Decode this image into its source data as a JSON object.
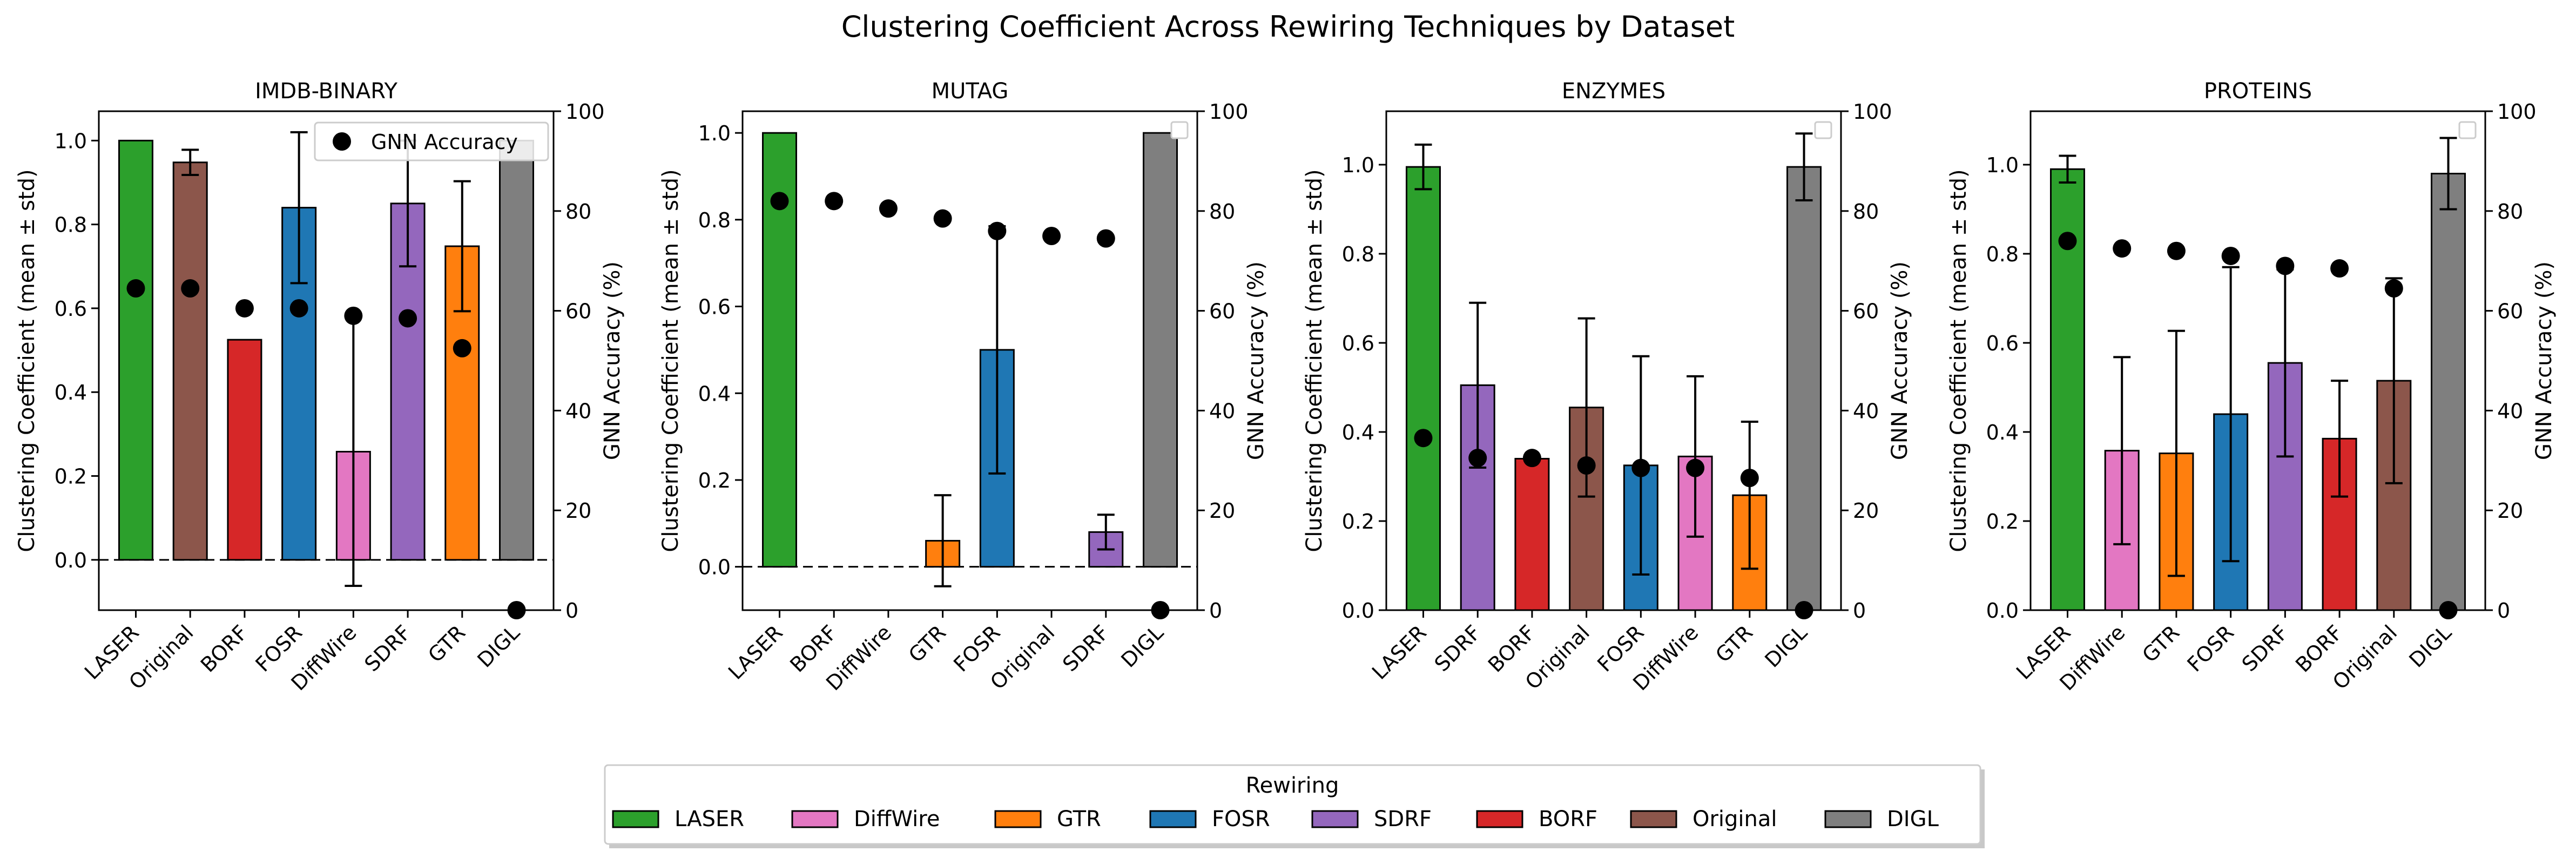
{
  "figure": {
    "title": "Clustering Coefficient Across Rewiring Techniques by Dataset",
    "legend_title": "Rewiring",
    "legend_items": [
      "LASER",
      "DiffWire",
      "GTR",
      "FOSR",
      "SDRF",
      "BORF",
      "Original",
      "DIGL"
    ],
    "colors": {
      "LASER": "#2ca02c",
      "DiffWire": "#e377c2",
      "GTR": "#ff7f0e",
      "FOSR": "#1f77b4",
      "SDRF": "#9467bd",
      "BORF": "#d62728",
      "Original": "#8c564b",
      "DIGL": "#7f7f7f"
    },
    "marker_color": "#000000"
  },
  "chart_data": [
    {
      "type": "bar",
      "title": "IMDB-BINARY",
      "ylabel": "Clustering Coefficient (mean ± std)",
      "y2label": "GNN Accuracy (%)",
      "ylim": [
        -0.12,
        1.07
      ],
      "yticks": [
        "0.0",
        "0.2",
        "0.4",
        "0.6",
        "0.8",
        "1.0"
      ],
      "y2lim": [
        0,
        100
      ],
      "y2ticks": [
        "0",
        "20",
        "40",
        "60",
        "80",
        "100"
      ],
      "zero_line": true,
      "legend": "GNN Accuracy",
      "legend_position": "top-right",
      "categories": [
        "LASER",
        "Original",
        "BORF",
        "FOSR",
        "DiffWire",
        "SDRF",
        "GTR",
        "DIGL"
      ],
      "values": [
        1.0,
        0.948,
        0.525,
        0.84,
        0.258,
        0.85,
        0.748,
        1.0
      ],
      "errors": [
        0.0,
        0.03,
        0.0,
        0.18,
        0.32,
        0.15,
        0.155,
        0.0
      ],
      "accuracy": [
        64.5,
        64.5,
        60.5,
        60.5,
        59,
        58.5,
        52.5,
        0
      ]
    },
    {
      "type": "bar",
      "title": "MUTAG",
      "ylabel": "Clustering Coefficient (mean ± std)",
      "y2label": "GNN Accuracy (%)",
      "ylim": [
        -0.1,
        1.05
      ],
      "yticks": [
        "0.0",
        "0.2",
        "0.4",
        "0.6",
        "0.8",
        "1.0"
      ],
      "y2lim": [
        0,
        100
      ],
      "y2ticks": [
        "0",
        "20",
        "40",
        "60",
        "80",
        "100"
      ],
      "zero_line": true,
      "legend": "",
      "legend_position": "top-right",
      "categories": [
        "LASER",
        "BORF",
        "DiffWire",
        "GTR",
        "FOSR",
        "Original",
        "SDRF",
        "DIGL"
      ],
      "values": [
        1.0,
        0.0,
        0.0,
        0.06,
        0.5,
        0.0,
        0.08,
        1.0
      ],
      "errors": [
        0.0,
        0.0,
        0.0,
        0.105,
        0.285,
        0.0,
        0.04,
        0.0
      ],
      "accuracy": [
        82,
        82,
        80.5,
        78.5,
        76,
        75,
        74.5,
        0
      ]
    },
    {
      "type": "bar",
      "title": "ENZYMES",
      "ylabel": "Clustering Coefficient (mean ± std)",
      "y2label": "GNN Accuracy (%)",
      "ylim": [
        0,
        1.12
      ],
      "yticks": [
        "0.0",
        "0.2",
        "0.4",
        "0.6",
        "0.8",
        "1.0"
      ],
      "y2lim": [
        0,
        100
      ],
      "y2ticks": [
        "0",
        "20",
        "40",
        "60",
        "80",
        "100"
      ],
      "zero_line": false,
      "legend": "",
      "legend_position": "top-right",
      "categories": [
        "LASER",
        "SDRF",
        "BORF",
        "Original",
        "FOSR",
        "DiffWire",
        "GTR",
        "DIGL"
      ],
      "values": [
        0.995,
        0.505,
        0.34,
        0.455,
        0.325,
        0.345,
        0.258,
        0.995
      ],
      "errors": [
        0.05,
        0.185,
        0.0,
        0.2,
        0.245,
        0.18,
        0.165,
        0.075
      ],
      "accuracy": [
        34.5,
        30.5,
        30.5,
        29,
        28.5,
        28.5,
        26.5,
        0
      ]
    },
    {
      "type": "bar",
      "title": "PROTEINS",
      "ylabel": "Clustering Coefficient (mean ± std)",
      "y2label": "GNN Accuracy (%)",
      "ylim": [
        0,
        1.12
      ],
      "yticks": [
        "0.0",
        "0.2",
        "0.4",
        "0.6",
        "0.8",
        "1.0"
      ],
      "y2lim": [
        0,
        100
      ],
      "y2ticks": [
        "0",
        "20",
        "40",
        "60",
        "80",
        "100"
      ],
      "zero_line": false,
      "legend": "",
      "legend_position": "top-right",
      "categories": [
        "LASER",
        "DiffWire",
        "GTR",
        "FOSR",
        "SDRF",
        "BORF",
        "Original",
        "DIGL"
      ],
      "values": [
        0.99,
        0.358,
        0.352,
        0.44,
        0.555,
        0.385,
        0.515,
        0.98
      ],
      "errors": [
        0.03,
        0.21,
        0.275,
        0.33,
        0.21,
        0.13,
        0.23,
        0.08
      ],
      "accuracy": [
        74,
        72.5,
        72,
        71,
        69,
        68.5,
        64.5,
        0
      ]
    }
  ]
}
